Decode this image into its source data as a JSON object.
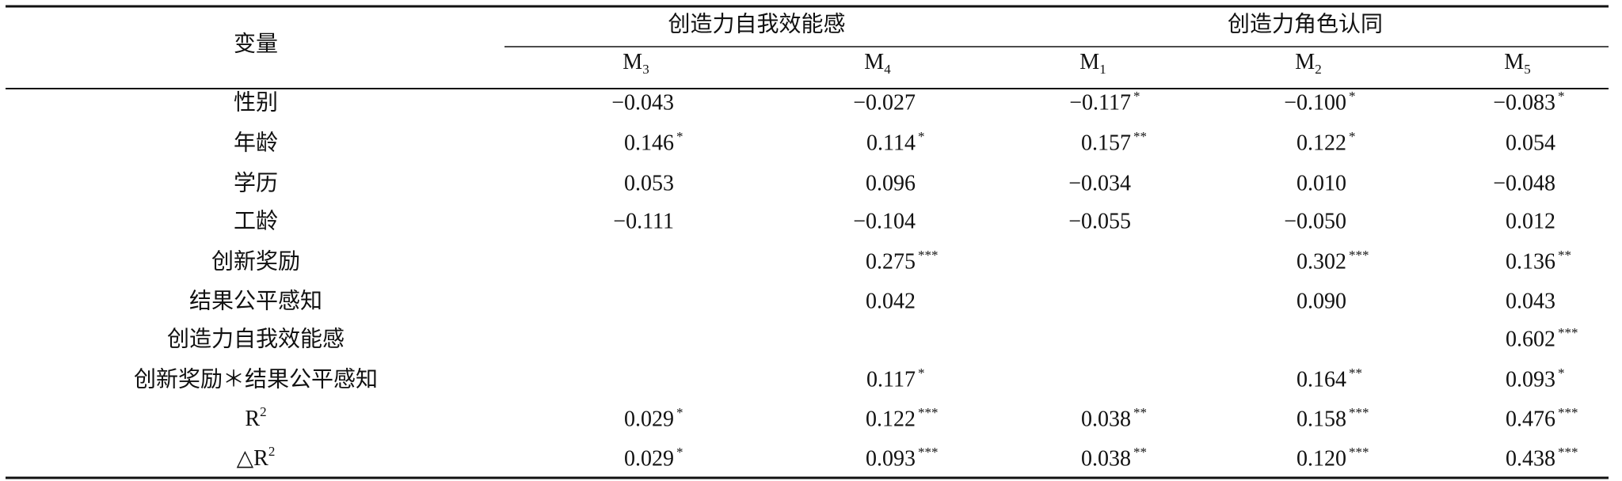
{
  "table": {
    "header": {
      "row_label": "变量",
      "groups": [
        {
          "label": "创造力自我效能感",
          "columns": [
            {
              "base": "M",
              "sub": "3"
            },
            {
              "base": "M",
              "sub": "4"
            }
          ]
        },
        {
          "label": "创造力角色认同",
          "columns": [
            {
              "base": "M",
              "sub": "1"
            },
            {
              "base": "M",
              "sub": "2"
            },
            {
              "base": "M",
              "sub": "5"
            }
          ]
        }
      ]
    },
    "rows": [
      {
        "label": "性别",
        "cells": [
          {
            "value": "−0.043"
          },
          {
            "value": "−0.027"
          },
          {
            "value": "−0.117",
            "sig": "*"
          },
          {
            "value": "−0.100",
            "sig": "*"
          },
          {
            "value": "−0.083",
            "sig": "*"
          }
        ]
      },
      {
        "label": "年龄",
        "cells": [
          {
            "value": "0.146",
            "sig": "*"
          },
          {
            "value": "0.114",
            "sig": "*"
          },
          {
            "value": "0.157",
            "sig": "**"
          },
          {
            "value": "0.122",
            "sig": "*"
          },
          {
            "value": "0.054"
          }
        ]
      },
      {
        "label": "学历",
        "cells": [
          {
            "value": "0.053"
          },
          {
            "value": "0.096"
          },
          {
            "value": "−0.034"
          },
          {
            "value": "0.010"
          },
          {
            "value": "−0.048"
          }
        ]
      },
      {
        "label": "工龄",
        "cells": [
          {
            "value": "−0.111"
          },
          {
            "value": "−0.104"
          },
          {
            "value": "−0.055"
          },
          {
            "value": "−0.050"
          },
          {
            "value": "0.012"
          }
        ]
      },
      {
        "label": "创新奖励",
        "cells": [
          null,
          {
            "value": "0.275",
            "sig": "***"
          },
          null,
          {
            "value": "0.302",
            "sig": "***"
          },
          {
            "value": "0.136",
            "sig": "**"
          }
        ]
      },
      {
        "label": "结果公平感知",
        "cells": [
          null,
          {
            "value": "0.042"
          },
          null,
          {
            "value": "0.090"
          },
          {
            "value": "0.043"
          }
        ]
      },
      {
        "label": "创造力自我效能感",
        "cells": [
          null,
          null,
          null,
          null,
          {
            "value": "0.602",
            "sig": "***"
          }
        ]
      },
      {
        "label": "创新奖励＊结果公平感知",
        "cells": [
          null,
          {
            "value": "0.117",
            "sig": "*"
          },
          null,
          {
            "value": "0.164",
            "sig": "**"
          },
          {
            "value": "0.093",
            "sig": "*"
          }
        ]
      },
      {
        "label": {
          "base": "R",
          "sup": "2"
        },
        "cells": [
          {
            "value": "0.029",
            "sig": "*"
          },
          {
            "value": "0.122",
            "sig": "***"
          },
          {
            "value": "0.038",
            "sig": "**"
          },
          {
            "value": "0.158",
            "sig": "***"
          },
          {
            "value": "0.476",
            "sig": "***"
          }
        ]
      },
      {
        "label": {
          "base": "△R",
          "sup": "2"
        },
        "cells": [
          {
            "value": "0.029",
            "sig": "*"
          },
          {
            "value": "0.093",
            "sig": "***"
          },
          {
            "value": "0.038",
            "sig": "**"
          },
          {
            "value": "0.120",
            "sig": "***"
          },
          {
            "value": "0.438",
            "sig": "***"
          }
        ]
      }
    ]
  }
}
